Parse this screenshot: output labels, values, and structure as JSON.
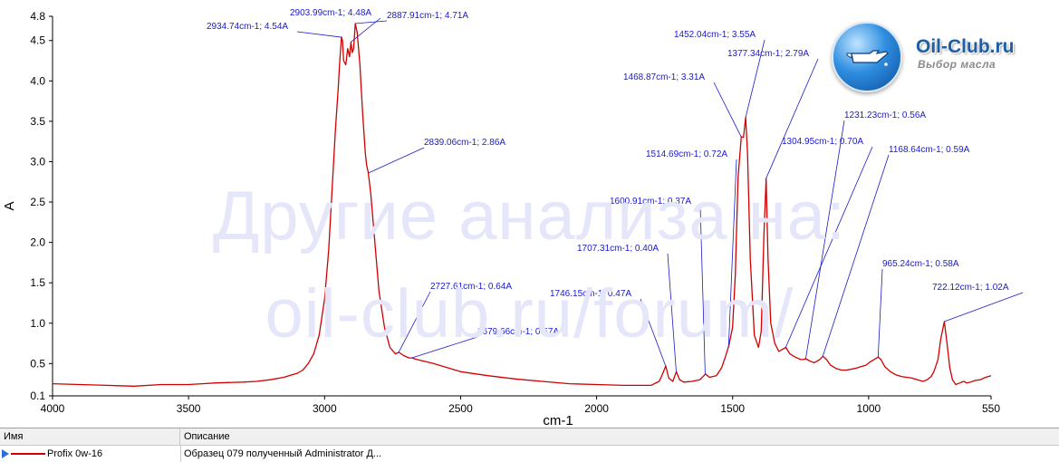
{
  "chart_data": {
    "type": "line",
    "xlabel": "cm-1",
    "ylabel": "A",
    "xlim": [
      4000,
      550
    ],
    "ylim": [
      0.1,
      4.8
    ],
    "x_reversed": true,
    "x_ticks": [
      4000,
      3500,
      3000,
      2500,
      2000,
      1500,
      1000,
      550
    ],
    "y_ticks": [
      0.1,
      0.5,
      1.0,
      1.5,
      2.0,
      2.5,
      3.0,
      3.5,
      4.0,
      4.5,
      4.8
    ],
    "x_tick_labels": [
      "4000",
      "3500",
      "3000",
      "2500",
      "2000",
      "1500",
      "1000",
      "550"
    ],
    "y_tick_labels": [
      "0.1",
      "0.5",
      "1.0",
      "1.5",
      "2.0",
      "2.5",
      "3.0",
      "3.5",
      "4.0",
      "4.5",
      "4.8"
    ],
    "series": [
      {
        "name": "Profix 0w-16",
        "color": "#d00000",
        "points": [
          [
            4000,
            0.25
          ],
          [
            3900,
            0.24
          ],
          [
            3800,
            0.23
          ],
          [
            3700,
            0.22
          ],
          [
            3600,
            0.24
          ],
          [
            3500,
            0.24
          ],
          [
            3450,
            0.25
          ],
          [
            3400,
            0.26
          ],
          [
            3300,
            0.27
          ],
          [
            3250,
            0.28
          ],
          [
            3200,
            0.3
          ],
          [
            3150,
            0.33
          ],
          [
            3100,
            0.38
          ],
          [
            3080,
            0.42
          ],
          [
            3060,
            0.5
          ],
          [
            3040,
            0.62
          ],
          [
            3020,
            0.85
          ],
          [
            3000,
            1.3
          ],
          [
            2985,
            1.9
          ],
          [
            2970,
            2.8
          ],
          [
            2960,
            3.4
          ],
          [
            2950,
            3.9
          ],
          [
            2945,
            4.2
          ],
          [
            2938,
            4.54
          ],
          [
            2934,
            4.5
          ],
          [
            2930,
            4.25
          ],
          [
            2922,
            4.2
          ],
          [
            2915,
            4.4
          ],
          [
            2908,
            4.3
          ],
          [
            2903,
            4.48
          ],
          [
            2898,
            4.35
          ],
          [
            2893,
            4.4
          ],
          [
            2887,
            4.71
          ],
          [
            2880,
            4.6
          ],
          [
            2870,
            4.2
          ],
          [
            2860,
            3.6
          ],
          [
            2850,
            3.1
          ],
          [
            2845,
            2.95
          ],
          [
            2839,
            2.86
          ],
          [
            2830,
            2.6
          ],
          [
            2820,
            2.2
          ],
          [
            2800,
            1.4
          ],
          [
            2780,
            0.95
          ],
          [
            2760,
            0.7
          ],
          [
            2740,
            0.62
          ],
          [
            2727,
            0.64
          ],
          [
            2710,
            0.6
          ],
          [
            2690,
            0.57
          ],
          [
            2679,
            0.57
          ],
          [
            2660,
            0.55
          ],
          [
            2600,
            0.5
          ],
          [
            2500,
            0.4
          ],
          [
            2400,
            0.35
          ],
          [
            2300,
            0.31
          ],
          [
            2200,
            0.28
          ],
          [
            2100,
            0.25
          ],
          [
            2000,
            0.24
          ],
          [
            1900,
            0.23
          ],
          [
            1800,
            0.23
          ],
          [
            1770,
            0.28
          ],
          [
            1760,
            0.35
          ],
          [
            1746,
            0.47
          ],
          [
            1735,
            0.32
          ],
          [
            1720,
            0.28
          ],
          [
            1707,
            0.4
          ],
          [
            1695,
            0.3
          ],
          [
            1680,
            0.27
          ],
          [
            1650,
            0.28
          ],
          [
            1620,
            0.3
          ],
          [
            1600,
            0.37
          ],
          [
            1585,
            0.33
          ],
          [
            1560,
            0.35
          ],
          [
            1540,
            0.45
          ],
          [
            1525,
            0.6
          ],
          [
            1514,
            0.72
          ],
          [
            1500,
            0.95
          ],
          [
            1490,
            1.6
          ],
          [
            1480,
            2.8
          ],
          [
            1468,
            3.31
          ],
          [
            1460,
            3.3
          ],
          [
            1452,
            3.55
          ],
          [
            1445,
            3.1
          ],
          [
            1435,
            1.8
          ],
          [
            1420,
            0.85
          ],
          [
            1405,
            0.7
          ],
          [
            1395,
            0.9
          ],
          [
            1385,
            2.1
          ],
          [
            1377,
            2.79
          ],
          [
            1370,
            1.8
          ],
          [
            1360,
            1.0
          ],
          [
            1345,
            0.75
          ],
          [
            1330,
            0.65
          ],
          [
            1315,
            0.68
          ],
          [
            1304,
            0.7
          ],
          [
            1290,
            0.62
          ],
          [
            1270,
            0.58
          ],
          [
            1250,
            0.55
          ],
          [
            1240,
            0.55
          ],
          [
            1231,
            0.56
          ],
          [
            1215,
            0.53
          ],
          [
            1200,
            0.51
          ],
          [
            1180,
            0.55
          ],
          [
            1168,
            0.59
          ],
          [
            1155,
            0.55
          ],
          [
            1140,
            0.48
          ],
          [
            1120,
            0.44
          ],
          [
            1100,
            0.42
          ],
          [
            1080,
            0.42
          ],
          [
            1050,
            0.44
          ],
          [
            1030,
            0.46
          ],
          [
            1010,
            0.48
          ],
          [
            995,
            0.52
          ],
          [
            980,
            0.55
          ],
          [
            965,
            0.58
          ],
          [
            955,
            0.55
          ],
          [
            940,
            0.46
          ],
          [
            920,
            0.4
          ],
          [
            900,
            0.36
          ],
          [
            880,
            0.34
          ],
          [
            860,
            0.33
          ],
          [
            840,
            0.32
          ],
          [
            820,
            0.3
          ],
          [
            800,
            0.28
          ],
          [
            785,
            0.3
          ],
          [
            770,
            0.34
          ],
          [
            760,
            0.4
          ],
          [
            745,
            0.55
          ],
          [
            735,
            0.8
          ],
          [
            722,
            1.02
          ],
          [
            712,
            0.75
          ],
          [
            702,
            0.45
          ],
          [
            692,
            0.3
          ],
          [
            680,
            0.24
          ],
          [
            665,
            0.26
          ],
          [
            650,
            0.28
          ],
          [
            640,
            0.26
          ],
          [
            625,
            0.27
          ],
          [
            610,
            0.29
          ],
          [
            590,
            0.3
          ],
          [
            570,
            0.33
          ],
          [
            550,
            0.35
          ]
        ]
      }
    ],
    "annotations": [
      {
        "x": 2934.74,
        "y": 4.54,
        "label": "2934.74cm-1; 4.54A"
      },
      {
        "x": 2903.99,
        "y": 4.48,
        "label": "2903.99cm-1; 4.48A"
      },
      {
        "x": 2887.91,
        "y": 4.71,
        "label": "2887.91cm-1; 4.71A"
      },
      {
        "x": 2839.06,
        "y": 2.86,
        "label": "2839.06cm-1; 2.86A"
      },
      {
        "x": 2727.61,
        "y": 0.64,
        "label": "2727.61cm-1; 0.64A"
      },
      {
        "x": 2679.66,
        "y": 0.57,
        "label": "2679.66cm-1; 0.57A"
      },
      {
        "x": 1746.15,
        "y": 0.47,
        "label": "1746.15cm-1; 0.47A"
      },
      {
        "x": 1707.31,
        "y": 0.4,
        "label": "1707.31cm-1; 0.40A"
      },
      {
        "x": 1600.91,
        "y": 0.37,
        "label": "1600.91cm-1; 0.37A"
      },
      {
        "x": 1514.69,
        "y": 0.72,
        "label": "1514.69cm-1; 0.72A"
      },
      {
        "x": 1468.87,
        "y": 3.31,
        "label": "1468.87cm-1; 3.31A"
      },
      {
        "x": 1452.04,
        "y": 3.55,
        "label": "1452.04cm-1; 3.55A"
      },
      {
        "x": 1377.34,
        "y": 2.79,
        "label": "1377.34cm-1; 2.79A"
      },
      {
        "x": 1304.95,
        "y": 0.7,
        "label": "1304.95cm-1; 0.70A"
      },
      {
        "x": 1231.23,
        "y": 0.56,
        "label": "1231.23cm-1; 0.56A"
      },
      {
        "x": 1168.64,
        "y": 0.59,
        "label": "1168.64cm-1; 0.59A"
      },
      {
        "x": 965.24,
        "y": 0.58,
        "label": "965.24cm-1; 0.58A"
      },
      {
        "x": 722.12,
        "y": 1.02,
        "label": "722.12cm-1; 1.02A"
      }
    ],
    "grid": false,
    "legend": "bottom-table"
  },
  "watermark": {
    "line1": "Другие анализа на:",
    "line2": "oil-club.ru/forum/"
  },
  "logo": {
    "title": "Oil-Club.ru",
    "subtitle": "Выбор масла"
  },
  "legend_table": {
    "header_name": "Имя",
    "header_description": "Описание",
    "row_name": "Profix 0w-16",
    "row_description": "Образец 079 полученный Administrator Д..."
  },
  "colors": {
    "series": "#d00000",
    "annotation": "#1a1acc",
    "axis": "#000000"
  }
}
